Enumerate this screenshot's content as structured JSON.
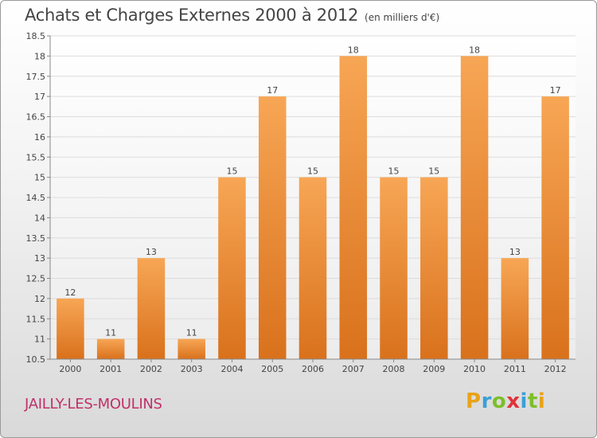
{
  "header": {
    "title": "Achats et Charges Externes 2000 à 2012",
    "unit": "(en milliers d'€)"
  },
  "footer": {
    "city": "JAILLY-LES-MOULINS",
    "brand": [
      "P",
      "r",
      "o",
      "x",
      "i",
      "t",
      "i"
    ]
  },
  "colors": {
    "bar_top": "#f7a655",
    "bar_bottom": "#d9711c",
    "grid": "#dcdcdc",
    "axis": "#888888",
    "text": "#444444",
    "city": "#c0306a"
  },
  "chart_data": {
    "type": "bar",
    "title": "Achats et Charges Externes 2000 à 2012",
    "subtitle": "(en milliers d'€)",
    "xlabel": "",
    "ylabel": "",
    "ylim": [
      10.5,
      18.5
    ],
    "yticks": [
      "10.5",
      "11",
      "11.5",
      "12",
      "12.5",
      "13",
      "13.5",
      "14",
      "14.5",
      "15",
      "15.5",
      "16",
      "16.5",
      "17",
      "17.5",
      "18",
      "18.5"
    ],
    "grid": true,
    "categories": [
      "2000",
      "2001",
      "2002",
      "2003",
      "2004",
      "2005",
      "2006",
      "2007",
      "2008",
      "2009",
      "2010",
      "2011",
      "2012"
    ],
    "values": [
      12,
      11,
      13,
      11,
      15,
      17,
      15,
      18,
      15,
      15,
      18,
      13,
      17
    ],
    "data_labels": [
      "12",
      "11",
      "13",
      "11",
      "15",
      "17",
      "15",
      "18",
      "15",
      "15",
      "18",
      "13",
      "17"
    ]
  }
}
